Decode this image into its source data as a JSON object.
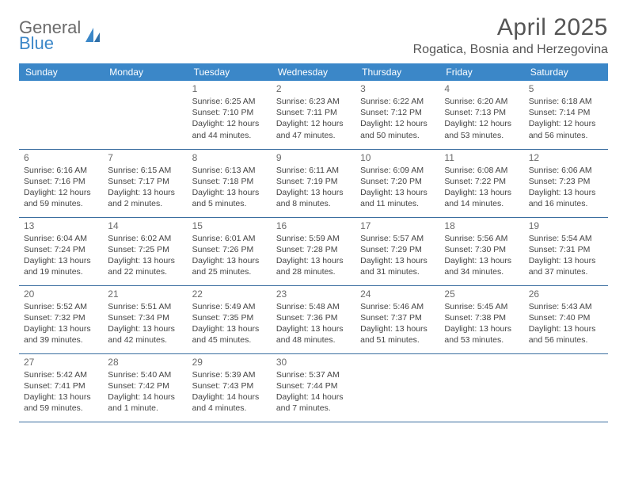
{
  "brand": {
    "general": "General",
    "blue": "Blue"
  },
  "title": "April 2025",
  "location": "Rogatica, Bosnia and Herzegovina",
  "colors": {
    "header_bg": "#3b87c8",
    "header_text": "#ffffff",
    "border": "#3b6ea0",
    "text": "#444444",
    "title_text": "#555555",
    "logo_gray": "#6b6b6b",
    "logo_blue": "#3b87c8",
    "background": "#ffffff"
  },
  "typography": {
    "title_fontsize": 30,
    "location_fontsize": 16,
    "dayheader_fontsize": 12,
    "cell_fontsize": 10.5,
    "daynum_fontsize": 12
  },
  "day_headers": [
    "Sunday",
    "Monday",
    "Tuesday",
    "Wednesday",
    "Thursday",
    "Friday",
    "Saturday"
  ],
  "weeks": [
    [
      null,
      null,
      {
        "n": "1",
        "sr": "Sunrise: 6:25 AM",
        "ss": "Sunset: 7:10 PM",
        "d1": "Daylight: 12 hours",
        "d2": "and 44 minutes."
      },
      {
        "n": "2",
        "sr": "Sunrise: 6:23 AM",
        "ss": "Sunset: 7:11 PM",
        "d1": "Daylight: 12 hours",
        "d2": "and 47 minutes."
      },
      {
        "n": "3",
        "sr": "Sunrise: 6:22 AM",
        "ss": "Sunset: 7:12 PM",
        "d1": "Daylight: 12 hours",
        "d2": "and 50 minutes."
      },
      {
        "n": "4",
        "sr": "Sunrise: 6:20 AM",
        "ss": "Sunset: 7:13 PM",
        "d1": "Daylight: 12 hours",
        "d2": "and 53 minutes."
      },
      {
        "n": "5",
        "sr": "Sunrise: 6:18 AM",
        "ss": "Sunset: 7:14 PM",
        "d1": "Daylight: 12 hours",
        "d2": "and 56 minutes."
      }
    ],
    [
      {
        "n": "6",
        "sr": "Sunrise: 6:16 AM",
        "ss": "Sunset: 7:16 PM",
        "d1": "Daylight: 12 hours",
        "d2": "and 59 minutes."
      },
      {
        "n": "7",
        "sr": "Sunrise: 6:15 AM",
        "ss": "Sunset: 7:17 PM",
        "d1": "Daylight: 13 hours",
        "d2": "and 2 minutes."
      },
      {
        "n": "8",
        "sr": "Sunrise: 6:13 AM",
        "ss": "Sunset: 7:18 PM",
        "d1": "Daylight: 13 hours",
        "d2": "and 5 minutes."
      },
      {
        "n": "9",
        "sr": "Sunrise: 6:11 AM",
        "ss": "Sunset: 7:19 PM",
        "d1": "Daylight: 13 hours",
        "d2": "and 8 minutes."
      },
      {
        "n": "10",
        "sr": "Sunrise: 6:09 AM",
        "ss": "Sunset: 7:20 PM",
        "d1": "Daylight: 13 hours",
        "d2": "and 11 minutes."
      },
      {
        "n": "11",
        "sr": "Sunrise: 6:08 AM",
        "ss": "Sunset: 7:22 PM",
        "d1": "Daylight: 13 hours",
        "d2": "and 14 minutes."
      },
      {
        "n": "12",
        "sr": "Sunrise: 6:06 AM",
        "ss": "Sunset: 7:23 PM",
        "d1": "Daylight: 13 hours",
        "d2": "and 16 minutes."
      }
    ],
    [
      {
        "n": "13",
        "sr": "Sunrise: 6:04 AM",
        "ss": "Sunset: 7:24 PM",
        "d1": "Daylight: 13 hours",
        "d2": "and 19 minutes."
      },
      {
        "n": "14",
        "sr": "Sunrise: 6:02 AM",
        "ss": "Sunset: 7:25 PM",
        "d1": "Daylight: 13 hours",
        "d2": "and 22 minutes."
      },
      {
        "n": "15",
        "sr": "Sunrise: 6:01 AM",
        "ss": "Sunset: 7:26 PM",
        "d1": "Daylight: 13 hours",
        "d2": "and 25 minutes."
      },
      {
        "n": "16",
        "sr": "Sunrise: 5:59 AM",
        "ss": "Sunset: 7:28 PM",
        "d1": "Daylight: 13 hours",
        "d2": "and 28 minutes."
      },
      {
        "n": "17",
        "sr": "Sunrise: 5:57 AM",
        "ss": "Sunset: 7:29 PM",
        "d1": "Daylight: 13 hours",
        "d2": "and 31 minutes."
      },
      {
        "n": "18",
        "sr": "Sunrise: 5:56 AM",
        "ss": "Sunset: 7:30 PM",
        "d1": "Daylight: 13 hours",
        "d2": "and 34 minutes."
      },
      {
        "n": "19",
        "sr": "Sunrise: 5:54 AM",
        "ss": "Sunset: 7:31 PM",
        "d1": "Daylight: 13 hours",
        "d2": "and 37 minutes."
      }
    ],
    [
      {
        "n": "20",
        "sr": "Sunrise: 5:52 AM",
        "ss": "Sunset: 7:32 PM",
        "d1": "Daylight: 13 hours",
        "d2": "and 39 minutes."
      },
      {
        "n": "21",
        "sr": "Sunrise: 5:51 AM",
        "ss": "Sunset: 7:34 PM",
        "d1": "Daylight: 13 hours",
        "d2": "and 42 minutes."
      },
      {
        "n": "22",
        "sr": "Sunrise: 5:49 AM",
        "ss": "Sunset: 7:35 PM",
        "d1": "Daylight: 13 hours",
        "d2": "and 45 minutes."
      },
      {
        "n": "23",
        "sr": "Sunrise: 5:48 AM",
        "ss": "Sunset: 7:36 PM",
        "d1": "Daylight: 13 hours",
        "d2": "and 48 minutes."
      },
      {
        "n": "24",
        "sr": "Sunrise: 5:46 AM",
        "ss": "Sunset: 7:37 PM",
        "d1": "Daylight: 13 hours",
        "d2": "and 51 minutes."
      },
      {
        "n": "25",
        "sr": "Sunrise: 5:45 AM",
        "ss": "Sunset: 7:38 PM",
        "d1": "Daylight: 13 hours",
        "d2": "and 53 minutes."
      },
      {
        "n": "26",
        "sr": "Sunrise: 5:43 AM",
        "ss": "Sunset: 7:40 PM",
        "d1": "Daylight: 13 hours",
        "d2": "and 56 minutes."
      }
    ],
    [
      {
        "n": "27",
        "sr": "Sunrise: 5:42 AM",
        "ss": "Sunset: 7:41 PM",
        "d1": "Daylight: 13 hours",
        "d2": "and 59 minutes."
      },
      {
        "n": "28",
        "sr": "Sunrise: 5:40 AM",
        "ss": "Sunset: 7:42 PM",
        "d1": "Daylight: 14 hours",
        "d2": "and 1 minute."
      },
      {
        "n": "29",
        "sr": "Sunrise: 5:39 AM",
        "ss": "Sunset: 7:43 PM",
        "d1": "Daylight: 14 hours",
        "d2": "and 4 minutes."
      },
      {
        "n": "30",
        "sr": "Sunrise: 5:37 AM",
        "ss": "Sunset: 7:44 PM",
        "d1": "Daylight: 14 hours",
        "d2": "and 7 minutes."
      },
      null,
      null,
      null
    ]
  ]
}
